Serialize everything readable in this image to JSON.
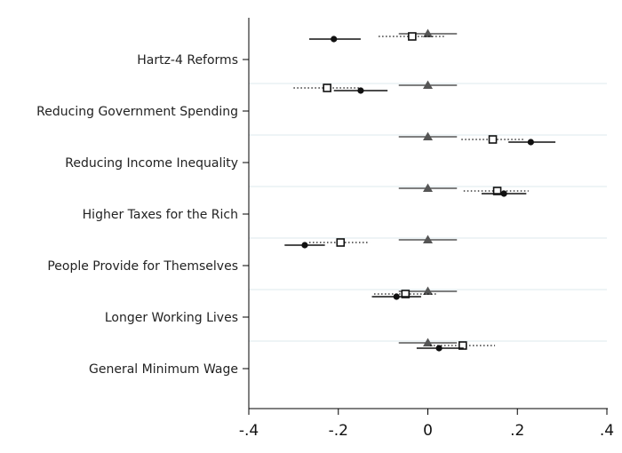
{
  "chart_data": {
    "type": "scatter",
    "title": "",
    "xlabel": "",
    "ylabel": "",
    "xlim": [
      -0.4,
      0.4
    ],
    "x_ticks": [
      -0.4,
      -0.2,
      0,
      0.2,
      0.4
    ],
    "x_tick_labels": [
      "-.4",
      "-.2",
      "0",
      ".2",
      ".4"
    ],
    "grid": "horizontal separators between categories",
    "legend": "none",
    "colors": {
      "reference_triangle": "#555555",
      "filled_circle": "#111111",
      "hollow_square": "#111111",
      "grid": "#dce8ee"
    },
    "categories": [
      "Hartz-4 Reforms",
      "Reducing Government Spending",
      "Reducing Income Inequality",
      "Higher Taxes for the Rich",
      "People Provide for Themselves",
      "Longer Working Lives",
      "General Minimum Wage"
    ],
    "series": [
      {
        "marker": "triangle",
        "line": "solid",
        "position": "upper",
        "points": [
          {
            "x": 0.0,
            "lo": -0.065,
            "hi": 0.065
          },
          {
            "x": 0.0,
            "lo": -0.065,
            "hi": 0.065
          },
          {
            "x": 0.0,
            "lo": -0.065,
            "hi": 0.065
          },
          {
            "x": 0.0,
            "lo": -0.065,
            "hi": 0.065
          },
          {
            "x": 0.0,
            "lo": -0.065,
            "hi": 0.065
          },
          {
            "x": 0.0,
            "lo": -0.065,
            "hi": 0.065
          },
          {
            "x": 0.0,
            "lo": -0.065,
            "hi": 0.065
          }
        ]
      },
      {
        "marker": "hollow-square",
        "line": "dotted",
        "position": "middle",
        "points": [
          {
            "x": -0.035,
            "lo": -0.11,
            "hi": 0.04
          },
          {
            "x": -0.225,
            "lo": -0.3,
            "hi": -0.15
          },
          {
            "x": 0.145,
            "lo": 0.075,
            "hi": 0.215
          },
          {
            "x": 0.155,
            "lo": 0.08,
            "hi": 0.225
          },
          {
            "x": -0.195,
            "lo": -0.265,
            "hi": -0.13
          },
          {
            "x": -0.05,
            "lo": -0.12,
            "hi": 0.02
          },
          {
            "x": 0.078,
            "lo": 0.005,
            "hi": 0.15
          }
        ]
      },
      {
        "marker": "filled-circle",
        "line": "solid",
        "position": "lower",
        "points": [
          {
            "x": -0.21,
            "lo": -0.265,
            "hi": -0.15
          },
          {
            "x": -0.15,
            "lo": -0.21,
            "hi": -0.09
          },
          {
            "x": 0.23,
            "lo": 0.18,
            "hi": 0.285
          },
          {
            "x": 0.17,
            "lo": 0.12,
            "hi": 0.22
          },
          {
            "x": -0.275,
            "lo": -0.32,
            "hi": -0.23
          },
          {
            "x": -0.07,
            "lo": -0.125,
            "hi": -0.015
          },
          {
            "x": 0.025,
            "lo": -0.025,
            "hi": 0.08
          }
        ]
      }
    ]
  }
}
